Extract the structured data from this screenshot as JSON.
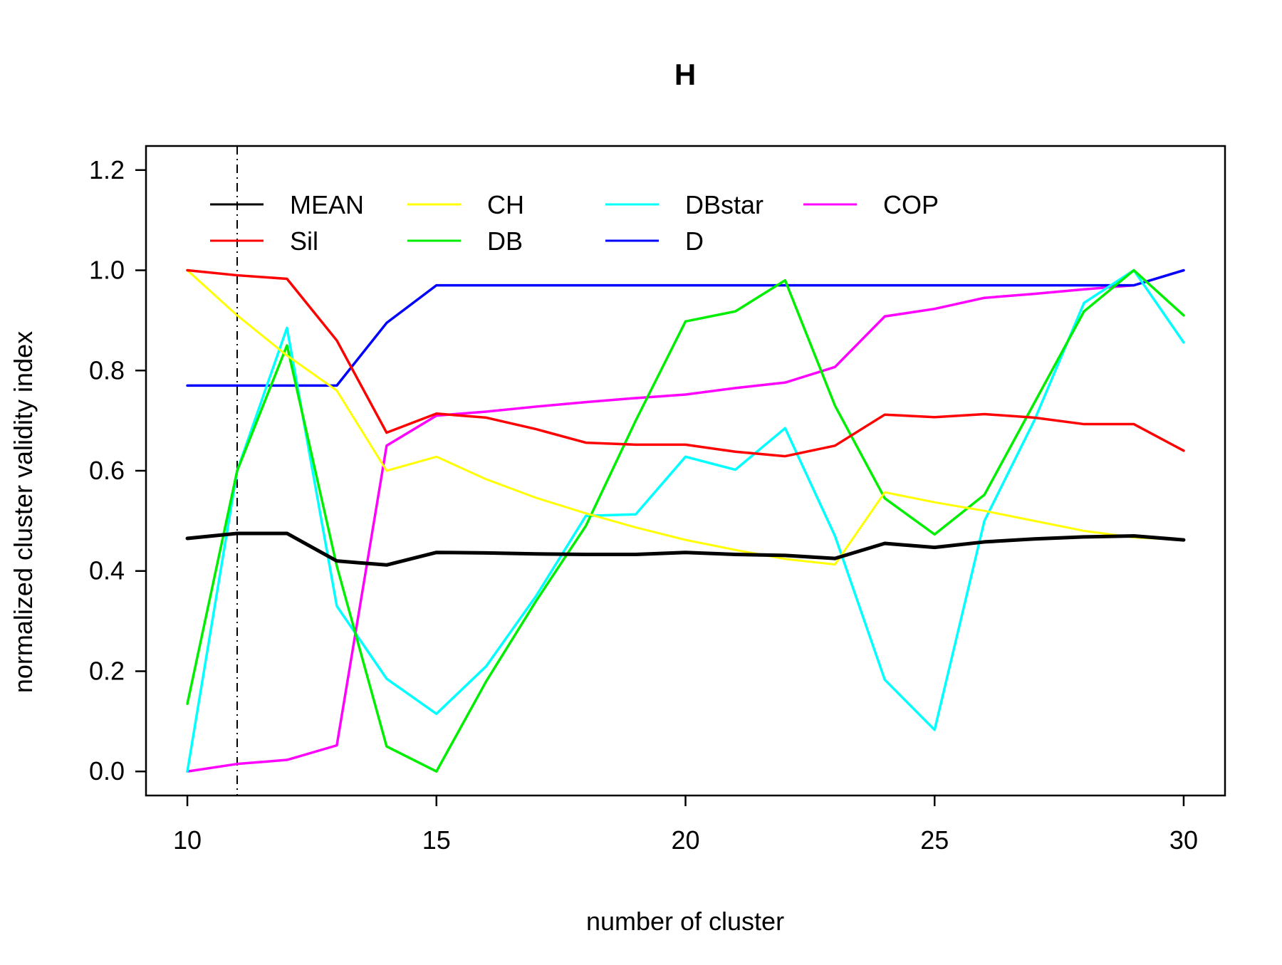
{
  "chart_data": {
    "type": "line",
    "title": "H",
    "xlabel": "number of cluster",
    "ylabel": "normalized cluster validity index",
    "xlim": [
      9.17,
      30.83
    ],
    "ylim": [
      -0.048,
      1.248
    ],
    "x_ticks": [
      10,
      15,
      20,
      25,
      30
    ],
    "y_ticks": [
      0.0,
      0.2,
      0.4,
      0.6,
      0.8,
      1.0,
      1.2
    ],
    "y_tick_labels": [
      "0.0",
      "0.2",
      "0.4",
      "0.6",
      "0.8",
      "1.0",
      "1.2"
    ],
    "grid": false,
    "legend_position": "top-left",
    "reference_line": {
      "x": 11,
      "style": "dash-dot",
      "color": "#000000"
    },
    "x": [
      10,
      11,
      12,
      13,
      14,
      15,
      16,
      17,
      18,
      19,
      20,
      21,
      22,
      23,
      24,
      25,
      26,
      27,
      28,
      29,
      30
    ],
    "series": [
      {
        "name": "MEAN",
        "color": "#000000",
        "width": 5,
        "values": [
          0.465,
          0.475,
          0.475,
          0.42,
          0.412,
          0.437,
          0.436,
          0.434,
          0.433,
          0.433,
          0.437,
          0.433,
          0.431,
          0.425,
          0.455,
          0.447,
          0.458,
          0.464,
          0.468,
          0.47,
          0.462
        ]
      },
      {
        "name": "Sil",
        "color": "#ff0000",
        "width": 3.5,
        "values": [
          1.0,
          0.99,
          0.983,
          0.86,
          0.676,
          0.714,
          0.706,
          0.683,
          0.656,
          0.652,
          0.652,
          0.638,
          0.629,
          0.65,
          0.712,
          0.707,
          0.713,
          0.706,
          0.693,
          0.693,
          0.64
        ]
      },
      {
        "name": "CH",
        "color": "#ffff00",
        "width": 3,
        "values": [
          1.0,
          0.91,
          0.83,
          0.76,
          0.6,
          0.628,
          0.583,
          0.546,
          0.515,
          0.487,
          0.462,
          0.442,
          0.424,
          0.413,
          0.557,
          0.537,
          0.52,
          0.5,
          0.48,
          0.467,
          0.462
        ]
      },
      {
        "name": "DB",
        "color": "#00ee00",
        "width": 3.5,
        "values": [
          0.135,
          0.6,
          0.85,
          0.41,
          0.05,
          0.0,
          0.18,
          0.34,
          0.49,
          0.7,
          0.898,
          0.918,
          0.98,
          0.73,
          0.545,
          0.473,
          0.552,
          0.735,
          0.918,
          1.0,
          0.91
        ]
      },
      {
        "name": "DBstar",
        "color": "#00ffff",
        "width": 3.5,
        "values": [
          0.0,
          0.6,
          0.885,
          0.33,
          0.185,
          0.115,
          0.21,
          0.35,
          0.51,
          0.513,
          0.628,
          0.602,
          0.685,
          0.47,
          0.183,
          0.083,
          0.5,
          0.7,
          0.935,
          1.0,
          0.856
        ]
      },
      {
        "name": "D",
        "color": "#0000ff",
        "width": 3.5,
        "values": [
          0.77,
          0.77,
          0.77,
          0.77,
          0.895,
          0.97,
          0.97,
          0.97,
          0.97,
          0.97,
          0.97,
          0.97,
          0.97,
          0.97,
          0.97,
          0.97,
          0.97,
          0.97,
          0.97,
          0.97,
          1.0
        ]
      },
      {
        "name": "COP",
        "color": "#ff00ff",
        "width": 3.5,
        "values": [
          0.0,
          0.015,
          0.023,
          0.052,
          0.65,
          0.71,
          0.718,
          0.728,
          0.737,
          0.745,
          0.752,
          0.765,
          0.776,
          0.807,
          0.908,
          0.923,
          0.945,
          0.953,
          0.962,
          0.97,
          1.0
        ]
      }
    ],
    "legend_order": [
      "MEAN",
      "Sil",
      "CH",
      "DB",
      "DBstar",
      "D",
      "COP"
    ]
  }
}
